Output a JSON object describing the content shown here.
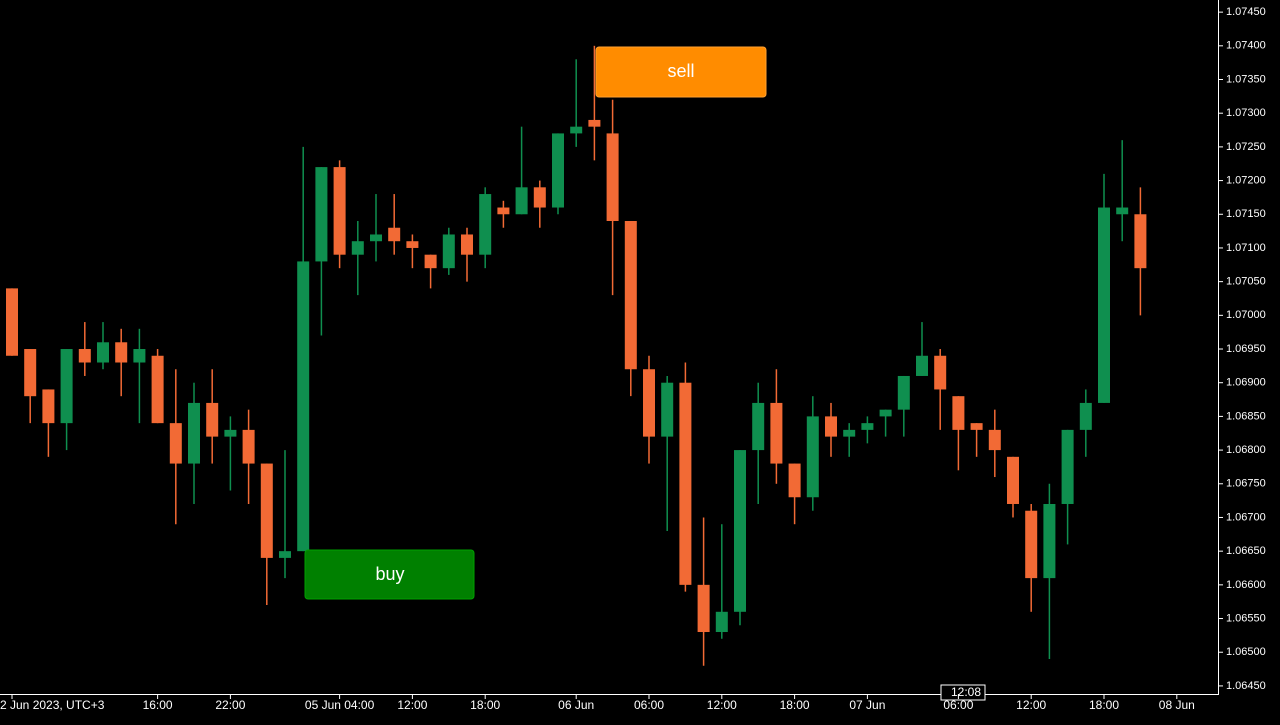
{
  "chart_data": {
    "type": "candlestick",
    "categories": [
      "2 Jun 2023, UTC+3",
      null,
      null,
      null,
      null,
      null,
      null,
      null,
      "16:00",
      null,
      null,
      null,
      "22:00",
      null,
      null,
      null,
      null,
      null,
      "05 Jun 04:00",
      null,
      null,
      null,
      "12:00",
      null,
      null,
      null,
      "18:00",
      null,
      null,
      null,
      null,
      "06 Jun",
      null,
      null,
      null,
      "06:00",
      null,
      null,
      null,
      "12:00",
      null,
      null,
      null,
      "18:00",
      null,
      null,
      null,
      "07 Jun",
      null,
      null,
      null,
      null,
      "06:00",
      null,
      null,
      null,
      "12:00",
      null,
      null,
      null,
      "18:00",
      null,
      null,
      null,
      "08 Jun"
    ],
    "open": [
      1.0704,
      1.0695,
      1.0689,
      1.0684,
      1.0695,
      1.0693,
      1.0696,
      1.0693,
      1.0694,
      1.0684,
      1.0678,
      1.0687,
      1.0682,
      1.0683,
      1.0678,
      1.0664,
      1.0665,
      1.0708,
      1.0722,
      1.0709,
      1.0711,
      1.0713,
      1.0711,
      1.0709,
      1.0707,
      1.0712,
      1.0709,
      1.0716,
      1.0715,
      1.0719,
      1.0716,
      1.0727,
      1.0729,
      1.0727,
      1.0714,
      1.0692,
      1.0682,
      1.069,
      1.066,
      1.0653,
      1.0656,
      1.068,
      1.0687,
      1.0678,
      1.0673,
      1.0685,
      1.0682,
      1.0683,
      1.0685,
      1.0686,
      1.0691,
      1.0694,
      1.0688,
      1.0684,
      1.0683,
      1.0679,
      1.0671,
      1.0661,
      1.0672,
      1.0683,
      1.0687,
      1.0715,
      1.0715,
      null,
      null
    ],
    "high": [
      1.0704,
      1.0695,
      1.0689,
      1.0695,
      1.0699,
      1.0699,
      1.0698,
      1.0698,
      1.0695,
      1.0692,
      1.069,
      1.0692,
      1.0685,
      1.0686,
      1.0678,
      1.068,
      1.0725,
      1.0722,
      1.0723,
      1.0714,
      1.0718,
      1.0718,
      1.0712,
      1.0709,
      1.0713,
      1.0713,
      1.0719,
      1.0717,
      1.0728,
      1.072,
      1.0727,
      1.0738,
      1.074,
      1.0732,
      1.0714,
      1.0694,
      1.0691,
      1.0693,
      1.067,
      1.0669,
      1.068,
      1.069,
      1.0692,
      1.0678,
      1.0688,
      1.0687,
      1.0684,
      1.0685,
      1.0686,
      1.0691,
      1.0699,
      1.0695,
      1.0688,
      1.0684,
      1.0686,
      1.0679,
      1.0672,
      1.0675,
      1.0683,
      1.0689,
      1.0721,
      1.0726,
      1.0719,
      null,
      null
    ],
    "low": [
      1.0694,
      1.0684,
      1.0679,
      1.068,
      1.0691,
      1.0692,
      1.0688,
      1.0684,
      1.0684,
      1.0669,
      1.0672,
      1.0678,
      1.0674,
      1.0672,
      1.0657,
      1.0661,
      1.0665,
      1.0697,
      1.0707,
      1.0703,
      1.0708,
      1.0709,
      1.0707,
      1.0704,
      1.0706,
      1.0705,
      1.0707,
      1.0713,
      1.0715,
      1.0713,
      1.0715,
      1.0725,
      1.0723,
      1.0703,
      1.0688,
      1.0678,
      1.0668,
      1.0659,
      1.0648,
      1.0652,
      1.0654,
      1.0672,
      1.0675,
      1.0669,
      1.0671,
      1.0679,
      1.0679,
      1.0681,
      1.0682,
      1.0682,
      1.0691,
      1.0683,
      1.0677,
      1.0679,
      1.0676,
      1.067,
      1.0656,
      1.0649,
      1.0666,
      1.0679,
      1.0687,
      1.0711,
      1.07,
      null,
      null
    ],
    "close": [
      1.0694,
      1.0688,
      1.0684,
      1.0695,
      1.0693,
      1.0696,
      1.0693,
      1.0695,
      1.0684,
      1.0678,
      1.0687,
      1.0682,
      1.0683,
      1.0678,
      1.0664,
      1.0665,
      1.0708,
      1.0722,
      1.0709,
      1.0711,
      1.0712,
      1.0711,
      1.071,
      1.0707,
      1.0712,
      1.0709,
      1.0718,
      1.0715,
      1.0719,
      1.0716,
      1.0727,
      1.0728,
      1.0728,
      1.0714,
      1.0692,
      1.0682,
      1.069,
      1.066,
      1.0653,
      1.0656,
      1.068,
      1.0687,
      1.0678,
      1.0673,
      1.0685,
      1.0682,
      1.0683,
      1.0684,
      1.0686,
      1.0691,
      1.0694,
      1.0689,
      1.0683,
      1.0683,
      1.068,
      1.0672,
      1.0661,
      1.0672,
      1.0683,
      1.0687,
      1.0716,
      1.0716,
      1.0707,
      null,
      null
    ],
    "up_color": "#0f8f4f",
    "down_color": "#f26a35",
    "ylim": [
      1.06438,
      1.07468
    ],
    "yticks": [
      {
        "value": 1.0645,
        "label": "1.06450"
      },
      {
        "value": 1.065,
        "label": "1.06500"
      },
      {
        "value": 1.0655,
        "label": "1.06550"
      },
      {
        "value": 1.066,
        "label": "1.06600"
      },
      {
        "value": 1.0665,
        "label": "1.06650"
      },
      {
        "value": 1.067,
        "label": "1.06700"
      },
      {
        "value": 1.0675,
        "label": "1.06750"
      },
      {
        "value": 1.068,
        "label": "1.06800"
      },
      {
        "value": 1.0685,
        "label": "1.06850"
      },
      {
        "value": 1.069,
        "label": "1.06900"
      },
      {
        "value": 1.0695,
        "label": "1.06950"
      },
      {
        "value": 1.07,
        "label": "1.07000"
      },
      {
        "value": 1.0705,
        "label": "1.07050"
      },
      {
        "value": 1.071,
        "label": "1.07100"
      },
      {
        "value": 1.0715,
        "label": "1.07150"
      },
      {
        "value": 1.072,
        "label": "1.07200"
      },
      {
        "value": 1.0725,
        "label": "1.07250"
      },
      {
        "value": 1.073,
        "label": "1.07300"
      },
      {
        "value": 1.0735,
        "label": "1.07350"
      },
      {
        "value": 1.074,
        "label": "1.07400"
      },
      {
        "value": 1.0745,
        "label": "1.07450"
      }
    ],
    "crosshair_label": "12:08"
  },
  "buttons": {
    "buy": "buy",
    "sell": "sell"
  }
}
